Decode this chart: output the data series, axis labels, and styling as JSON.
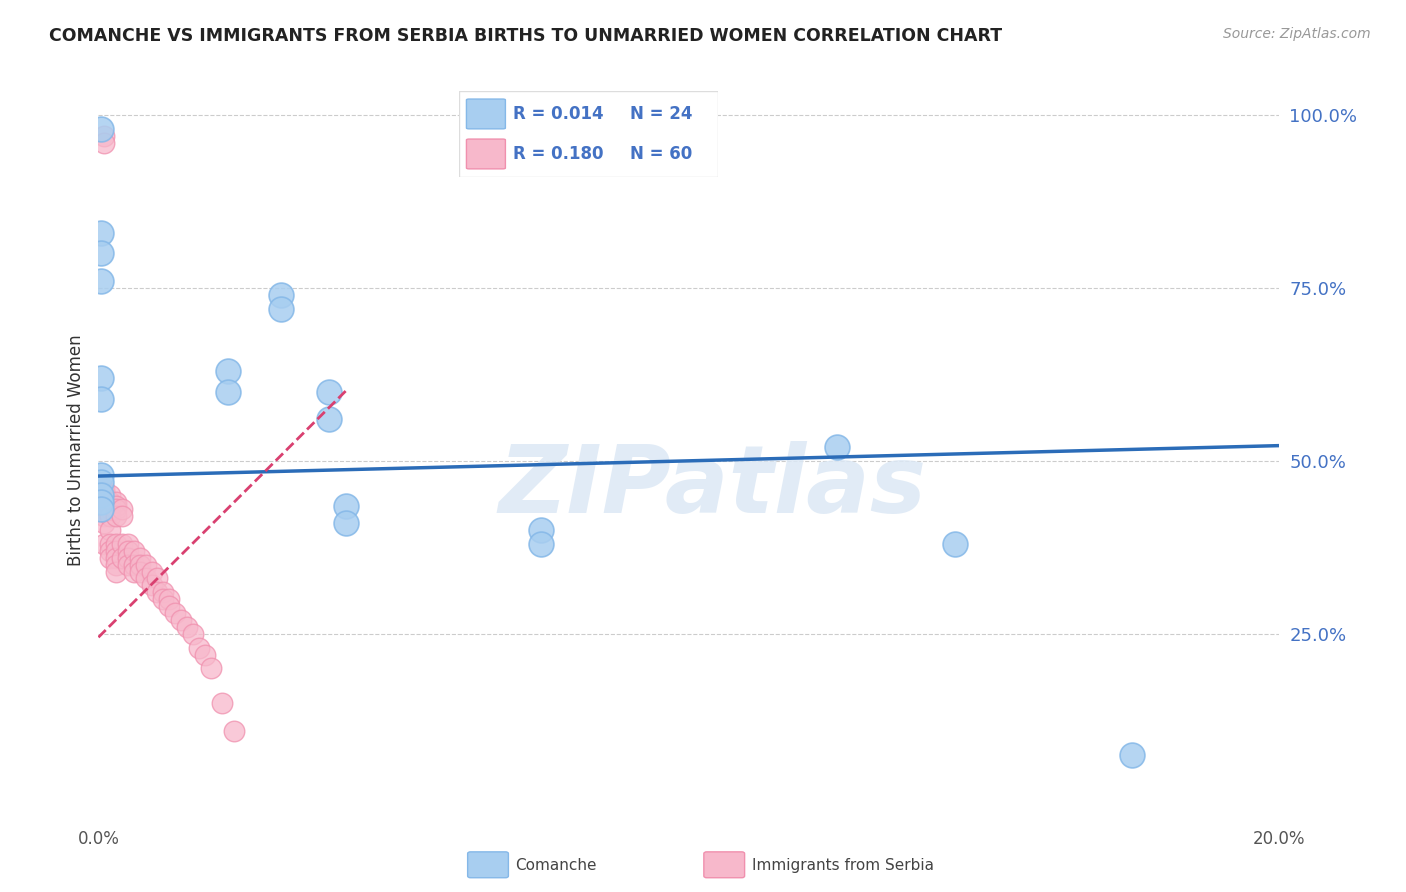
{
  "title": "COMANCHE VS IMMIGRANTS FROM SERBIA BIRTHS TO UNMARRIED WOMEN CORRELATION CHART",
  "source": "Source: ZipAtlas.com",
  "ylabel": "Births to Unmarried Women",
  "watermark": "ZIPatlas",
  "blue_color": "#a8cef0",
  "pink_color": "#f7b8cb",
  "blue_edge_color": "#85b8e8",
  "pink_edge_color": "#f090ae",
  "blue_line_color": "#2b6cb8",
  "pink_line_color": "#d94070",
  "blue_reg_intercept": 0.478,
  "blue_reg_slope": 0.22,
  "pink_reg_intercept": 0.245,
  "pink_reg_slope": 8.5,
  "legend_label_blue": "Comanche",
  "legend_label_pink": "Immigrants from Serbia",
  "blue_scatter_x": [
    0.0005,
    0.0005,
    0.0005,
    0.0005,
    0.0005,
    0.0005,
    0.0005,
    0.0005,
    0.0005,
    0.0005,
    0.0005,
    0.022,
    0.022,
    0.031,
    0.031,
    0.039,
    0.039,
    0.042,
    0.042,
    0.075,
    0.075,
    0.125,
    0.145,
    0.175
  ],
  "blue_scatter_y": [
    0.98,
    0.83,
    0.8,
    0.76,
    0.62,
    0.59,
    0.48,
    0.47,
    0.45,
    0.44,
    0.43,
    0.63,
    0.6,
    0.74,
    0.72,
    0.6,
    0.56,
    0.435,
    0.41,
    0.4,
    0.38,
    0.52,
    0.38,
    0.075
  ],
  "pink_scatter_x": [
    0.001,
    0.001,
    0.001,
    0.001,
    0.001,
    0.001,
    0.001,
    0.001,
    0.001,
    0.001,
    0.002,
    0.002,
    0.002,
    0.002,
    0.002,
    0.002,
    0.002,
    0.002,
    0.003,
    0.003,
    0.003,
    0.003,
    0.003,
    0.003,
    0.003,
    0.003,
    0.003,
    0.004,
    0.004,
    0.004,
    0.004,
    0.005,
    0.005,
    0.005,
    0.005,
    0.006,
    0.006,
    0.006,
    0.007,
    0.007,
    0.007,
    0.008,
    0.008,
    0.009,
    0.009,
    0.01,
    0.01,
    0.011,
    0.011,
    0.012,
    0.012,
    0.013,
    0.014,
    0.015,
    0.016,
    0.017,
    0.018,
    0.019,
    0.021,
    0.023
  ],
  "pink_scatter_y": [
    0.97,
    0.96,
    0.46,
    0.455,
    0.45,
    0.44,
    0.43,
    0.42,
    0.41,
    0.38,
    0.45,
    0.44,
    0.43,
    0.42,
    0.4,
    0.38,
    0.37,
    0.36,
    0.44,
    0.435,
    0.43,
    0.42,
    0.38,
    0.37,
    0.36,
    0.35,
    0.34,
    0.43,
    0.42,
    0.38,
    0.36,
    0.38,
    0.37,
    0.36,
    0.35,
    0.37,
    0.35,
    0.34,
    0.36,
    0.35,
    0.34,
    0.35,
    0.33,
    0.34,
    0.32,
    0.33,
    0.31,
    0.31,
    0.3,
    0.3,
    0.29,
    0.28,
    0.27,
    0.26,
    0.25,
    0.23,
    0.22,
    0.2,
    0.15,
    0.11
  ],
  "xmin": 0.0,
  "xmax": 0.2,
  "ymin": -0.02,
  "ymax": 1.05,
  "yticks": [
    0.0,
    0.25,
    0.5,
    0.75,
    1.0
  ],
  "ytick_labels": [
    "",
    "25.0%",
    "50.0%",
    "75.0%",
    "100.0%"
  ]
}
